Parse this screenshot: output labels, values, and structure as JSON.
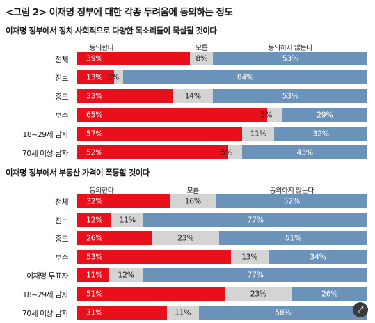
{
  "title": "<그림 2> 이재명 정부에 대한 각종 두려움에 동의하는 정도",
  "legend": {
    "agree": "동의한다",
    "unsure": "모름",
    "disagree": "동의하지 않는다"
  },
  "colors": {
    "agree": "#e8101a",
    "unsure": "#d4d4d4",
    "disagree": "#6b92b9"
  },
  "chart_data": [
    {
      "type": "bar",
      "stacked": true,
      "orientation": "horizontal",
      "title": "이재명 정부에서 정치 사회적으로 다양한 목소리들이 묵살될 것이다",
      "categories": [
        "전체",
        "진보",
        "중도",
        "보수",
        "18~29세 남자",
        "70세 이상 남자"
      ],
      "series": [
        {
          "name": "동의한다",
          "values": [
            39,
            13,
            33,
            65,
            57,
            52
          ]
        },
        {
          "name": "모름",
          "values": [
            8,
            3,
            14,
            5,
            11,
            5
          ]
        },
        {
          "name": "동의하지 않는다",
          "values": [
            53,
            84,
            53,
            29,
            32,
            43
          ]
        }
      ]
    },
    {
      "type": "bar",
      "stacked": true,
      "orientation": "horizontal",
      "title": "이재명 정부에서 부동산 가격이 폭등할 것이다",
      "categories": [
        "전체",
        "진보",
        "중도",
        "보수",
        "이재명 투표자",
        "18~29세 남자",
        "70세 이상 남자"
      ],
      "series": [
        {
          "name": "동의한다",
          "values": [
            32,
            12,
            26,
            53,
            11,
            51,
            31
          ]
        },
        {
          "name": "모름",
          "values": [
            16,
            11,
            23,
            13,
            12,
            23,
            11
          ]
        },
        {
          "name": "동의하지 않는다",
          "values": [
            52,
            77,
            51,
            34,
            77,
            26,
            58
          ]
        }
      ]
    }
  ],
  "zoom_icon": "expand-icon"
}
